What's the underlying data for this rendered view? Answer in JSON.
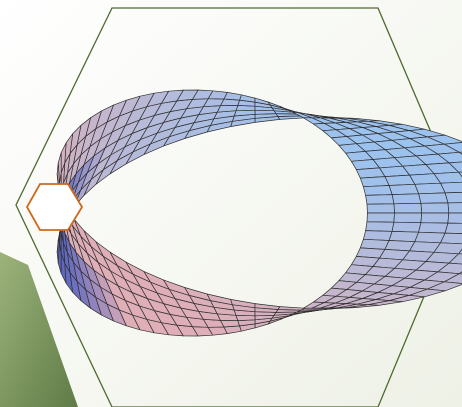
{
  "colors": {
    "background_tint": "#eef1e6",
    "accent_band_light": "#9db37c",
    "accent_band_dark": "#5f7b46",
    "frame_stroke": "#4f6a30",
    "mesh_line": "#2f2f2f",
    "hexagon_stroke": "#cc6a1c",
    "hexagon_fill": "#ffffff",
    "surface_warm": "#e0aeb7",
    "surface_cool": "#9cc2ee",
    "surface_deep": "#3f55c2"
  },
  "shapes": {
    "decorative_hexagon_frame": "hexagon",
    "small_hexagon_badge": "hexagon",
    "mobius_strip_mesh": "mobius-strip-surface"
  }
}
